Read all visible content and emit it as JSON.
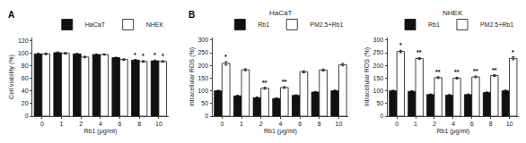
{
  "chart_data": [
    {
      "type": "bar",
      "annotations": [
        {
          "text": "A"
        }
      ],
      "xlabel": "Rb1 (μg/ml)",
      "ylabel": "Cell viability (%)",
      "categories": [
        "0",
        "1",
        "2",
        "4",
        "6",
        "8",
        "10"
      ],
      "series": [
        {
          "name": "HaCaT",
          "color": "#111111",
          "values": [
            99,
            101,
            99,
            98,
            93,
            89,
            88
          ],
          "errors": [
            1.2,
            1.2,
            0.8,
            0.8,
            0.8,
            1.2,
            1.2
          ],
          "annotations": [
            null,
            null,
            null,
            null,
            null,
            "*",
            "*"
          ]
        },
        {
          "name": "NHEK",
          "color": "#ffffff",
          "values": [
            99,
            100,
            94,
            98,
            90,
            87,
            87
          ],
          "errors": [
            1.2,
            1.2,
            1.2,
            0.8,
            1.2,
            1.2,
            1.2
          ],
          "annotations": [
            null,
            null,
            null,
            null,
            null,
            "*",
            "*"
          ]
        }
      ],
      "ylim": [
        0,
        125
      ],
      "yticks": [
        0,
        20,
        40,
        60,
        80,
        100,
        120
      ],
      "grid": false,
      "legend": "top right"
    },
    {
      "type": "bar",
      "title": "HaCaT",
      "annotations": [
        {
          "text": "B"
        }
      ],
      "xlabel": "Rb1 (μg/ml)",
      "ylabel": "Intracellular ROS (%)",
      "categories": [
        "0",
        "1",
        "2",
        "4",
        "6",
        "8",
        "10"
      ],
      "series": [
        {
          "name": "Rb1",
          "color": "#111111",
          "values": [
            100,
            80,
            73,
            70,
            82,
            95,
            100
          ],
          "errors": [
            2.5,
            3,
            2.5,
            2.5,
            2.5,
            2.5,
            3
          ]
        },
        {
          "name": "PM2.5+Rb1",
          "color": "#ffffff",
          "values": [
            208,
            183,
            110,
            113,
            175,
            182,
            203
          ],
          "errors": [
            7,
            4,
            4,
            3.5,
            4,
            4,
            5
          ],
          "annotations": [
            "*",
            null,
            "**",
            "**",
            null,
            null,
            null
          ]
        }
      ],
      "ylim": [
        0,
        310
      ],
      "yticks": [
        0,
        50,
        100,
        150,
        200,
        250,
        300
      ],
      "grid": false,
      "legend": "top right"
    },
    {
      "type": "bar",
      "title": "NHEK",
      "xlabel": "Rb1 (μg/ml)",
      "ylabel": "Intracellular ROS (%)",
      "categories": [
        "0",
        "1",
        "2",
        "4",
        "6",
        "8",
        "10"
      ],
      "series": [
        {
          "name": "Rb1",
          "color": "#111111",
          "values": [
            100,
            98,
            85,
            83,
            85,
            93,
            100
          ],
          "errors": [
            2.5,
            2.5,
            2.5,
            2.5,
            2.5,
            2.5,
            3
          ]
        },
        {
          "name": "PM2.5+Rb1",
          "color": "#ffffff",
          "values": [
            255,
            227,
            152,
            150,
            155,
            160,
            228
          ],
          "errors": [
            5,
            4,
            3.5,
            3.5,
            3.5,
            3.5,
            6
          ],
          "annotations": [
            "*",
            "**",
            "**",
            "**",
            "**",
            "**",
            "*"
          ]
        }
      ],
      "ylim": [
        0,
        310
      ],
      "yticks": [
        0,
        50,
        100,
        150,
        200,
        250,
        300
      ],
      "grid": false,
      "legend": "top right"
    }
  ]
}
